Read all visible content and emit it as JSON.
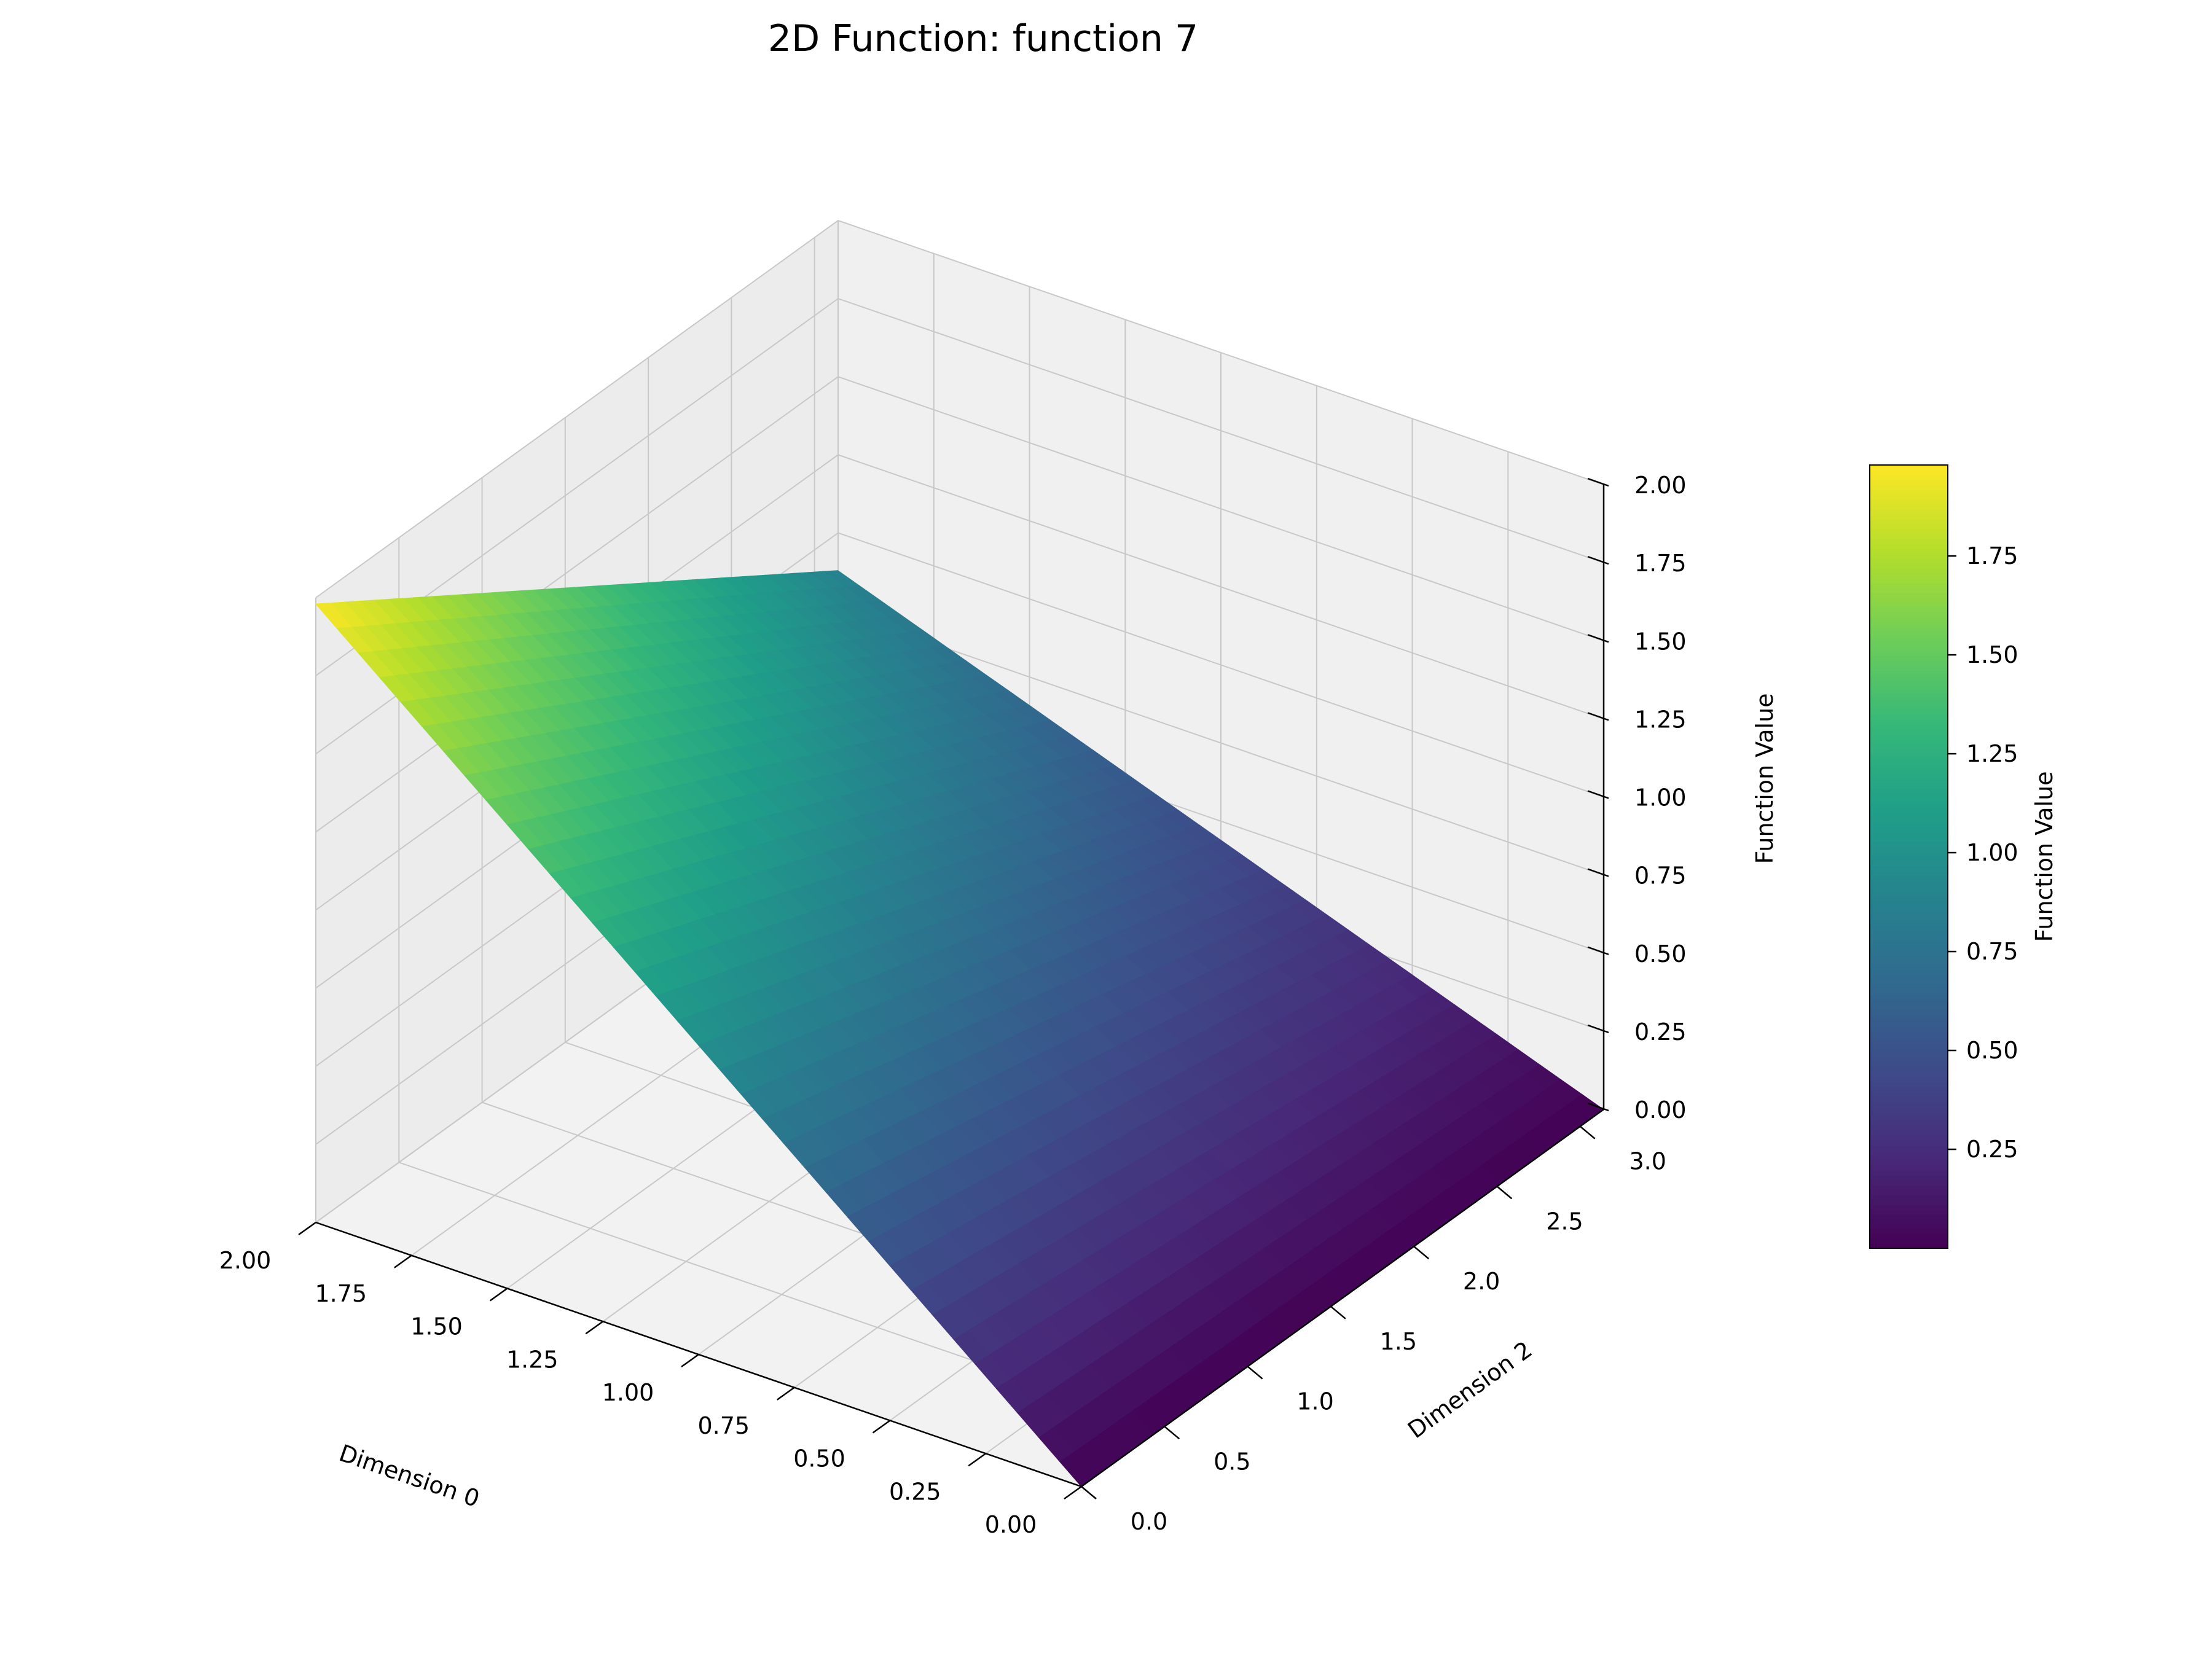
{
  "chart_data": {
    "type": "surface",
    "title": "2D Function: function 7",
    "xlabel": "Dimension 0",
    "ylabel": "Dimension 2",
    "zlabel": "Function Value",
    "colorbar_label": "Function Value",
    "colormap": "viridis",
    "xlim": [
      0,
      2
    ],
    "ylim": [
      0,
      3.1416
    ],
    "zlim": [
      0,
      2
    ],
    "x_ticks": [
      0.0,
      0.25,
      0.5,
      0.75,
      1.0,
      1.25,
      1.5,
      1.75,
      2.0
    ],
    "x_tick_labels": [
      "0.00",
      "0.25",
      "0.50",
      "0.75",
      "1.00",
      "1.25",
      "1.50",
      "1.75",
      "2.00"
    ],
    "y_ticks": [
      0.0,
      0.5,
      1.0,
      1.5,
      2.0,
      2.5,
      3.0
    ],
    "y_tick_labels": [
      "0.0",
      "0.5",
      "1.0",
      "1.5",
      "2.0",
      "2.5",
      "3.0"
    ],
    "z_ticks": [
      0.0,
      0.25,
      0.5,
      0.75,
      1.0,
      1.25,
      1.5,
      1.75,
      2.0
    ],
    "z_tick_labels": [
      "0.00",
      "0.25",
      "0.50",
      "0.75",
      "1.00",
      "1.25",
      "1.50",
      "1.75",
      "2.00"
    ],
    "colorbar_ticks": [
      0.25,
      0.5,
      0.75,
      1.0,
      1.25,
      1.5,
      1.75
    ],
    "colorbar_tick_labels": [
      "0.25",
      "0.50",
      "0.75",
      "1.00",
      "1.25",
      "1.50",
      "1.75"
    ],
    "colorbar_range": [
      0.0,
      1.98
    ],
    "surface_corners": [
      {
        "x": 0.0,
        "y": 0.0,
        "z": 0.0
      },
      {
        "x": 2.0,
        "y": 0.0,
        "z": 1.98
      },
      {
        "x": 2.0,
        "y": 3.14,
        "z": 0.88
      },
      {
        "x": 0.0,
        "y": 3.14,
        "z": 0.0
      }
    ],
    "grid": true
  }
}
